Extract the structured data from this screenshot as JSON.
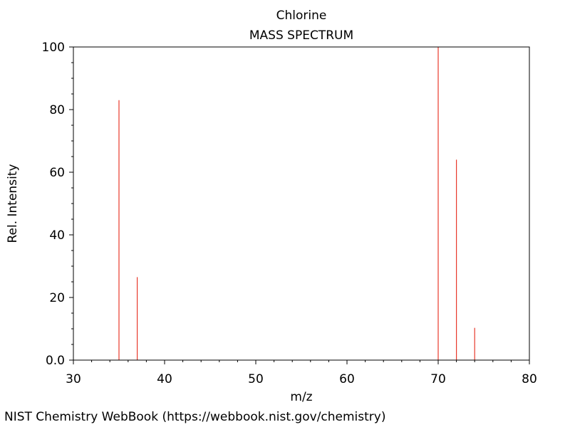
{
  "chart_data": {
    "type": "bar",
    "title": "Chlorine",
    "subtitle": "MASS SPECTRUM",
    "xlabel": "m/z",
    "ylabel": "Rel. Intensity",
    "xlim": [
      30,
      80
    ],
    "ylim": [
      0,
      100
    ],
    "x_ticks": [
      30,
      40,
      50,
      60,
      70,
      80
    ],
    "y_ticks": [
      0,
      20,
      40,
      60,
      80,
      100
    ],
    "x_tick_labels": [
      "30",
      "40",
      "50",
      "60",
      "70",
      "80"
    ],
    "y_tick_labels": [
      "0.0",
      "20",
      "40",
      "60",
      "80",
      "100"
    ],
    "grid": false,
    "peak_color": "#e8392b",
    "peaks": [
      {
        "mz": 35,
        "intensity": 83
      },
      {
        "mz": 37,
        "intensity": 26.5
      },
      {
        "mz": 70,
        "intensity": 100
      },
      {
        "mz": 72,
        "intensity": 64
      },
      {
        "mz": 74,
        "intensity": 10.3
      }
    ]
  },
  "source": "NIST Chemistry WebBook (https://webbook.nist.gov/chemistry)"
}
